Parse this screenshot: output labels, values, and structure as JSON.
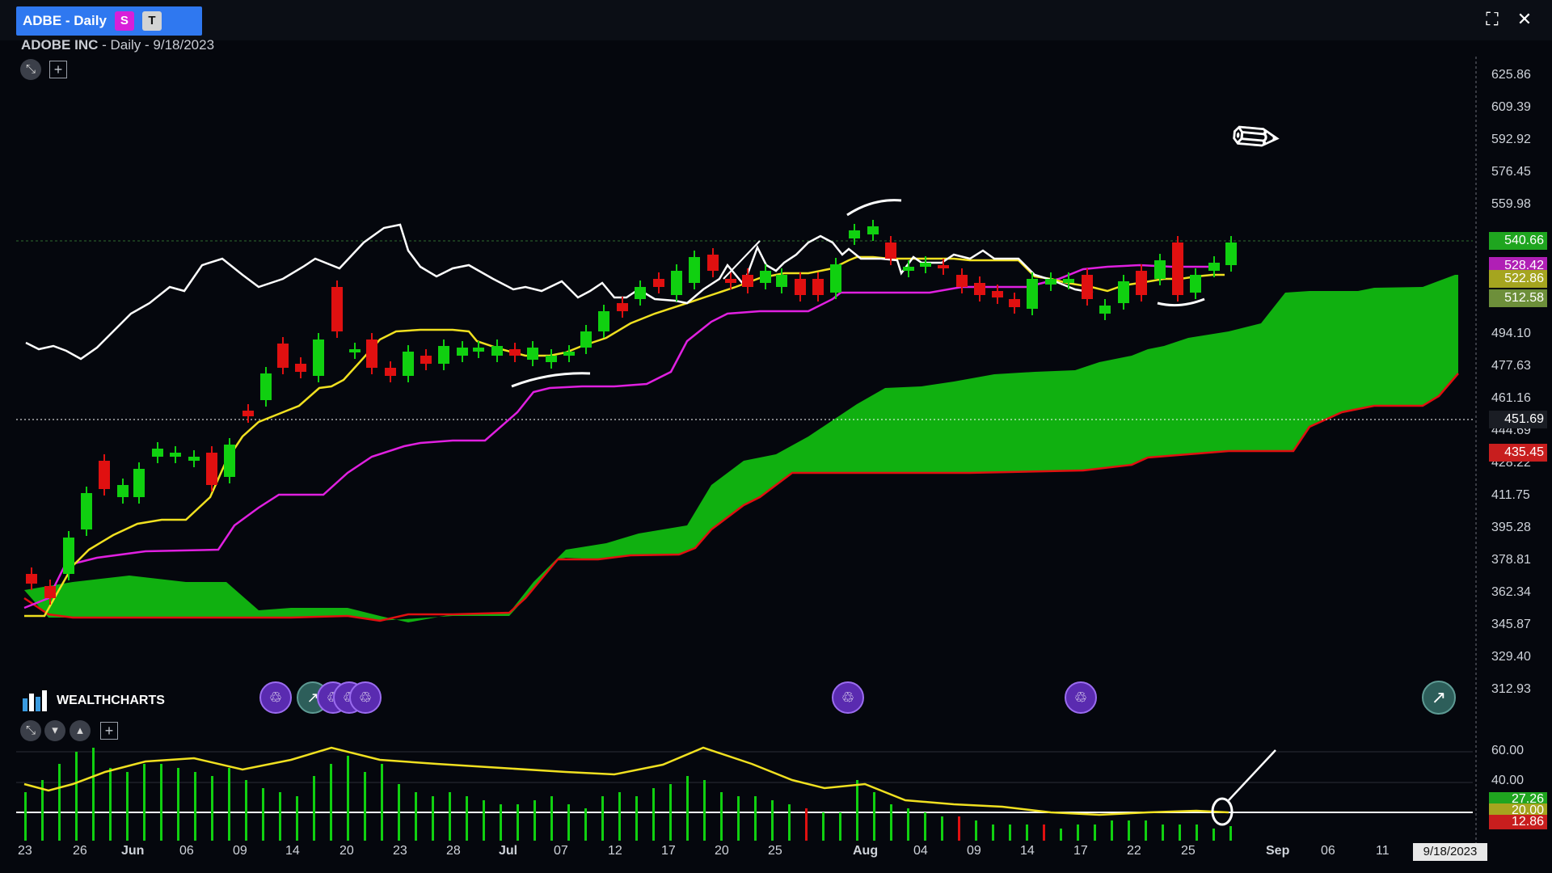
{
  "tab": {
    "label": "ADBE - Daily",
    "badge_s": "S",
    "badge_t": "T"
  },
  "window": {
    "expand_icon": "expand-icon",
    "close_icon": "close-icon"
  },
  "subtitle": {
    "name": "ADOBE INC",
    "rest": " - Daily - 9/18/2023"
  },
  "price_axis": [
    "625.86",
    "609.39",
    "592.92",
    "576.45",
    "559.98",
    "494.10",
    "477.63",
    "461.16",
    "444.69",
    "428.22",
    "411.75",
    "395.28",
    "378.81",
    "362.34",
    "345.87",
    "329.40",
    "312.93"
  ],
  "price_tags": [
    {
      "label": "540.66",
      "color": "#1fa51f"
    },
    {
      "label": "528.42",
      "color": "#b01fb5"
    },
    {
      "label": "522.86",
      "color": "#a5a51f"
    },
    {
      "label": "512.58",
      "color": "#6d8f3a"
    },
    {
      "label": "451.69",
      "color": "#1a1d24"
    },
    {
      "label": "435.45",
      "color": "#c81e1e"
    }
  ],
  "osc_axis": [
    "60.00",
    "40.00"
  ],
  "osc_tags": [
    {
      "label": "27.26",
      "color": "#1fa51f"
    },
    {
      "label": "20.00",
      "color": "#a5a51f"
    },
    {
      "label": "12.86",
      "color": "#c81e1e"
    }
  ],
  "date_axis": [
    "23",
    "26",
    "Jun",
    "06",
    "09",
    "14",
    "20",
    "23",
    "28",
    "Jul",
    "07",
    "12",
    "17",
    "20",
    "25",
    "Aug",
    "04",
    "09",
    "14",
    "17",
    "22",
    "25",
    "Sep",
    "06",
    "11"
  ],
  "date_chip": "9/18/2023",
  "logo": {
    "text": "WEALTHCHARTS",
    "icon": "wealthcharts-logo-icon"
  },
  "colors": {
    "bull": "#10d010",
    "bear": "#e01010",
    "tenkan": "#f0e020",
    "kijun": "#e020e0",
    "lagging": "#ffffff",
    "cloud": "#10b010",
    "cloud_edge": "#e01010"
  }
}
